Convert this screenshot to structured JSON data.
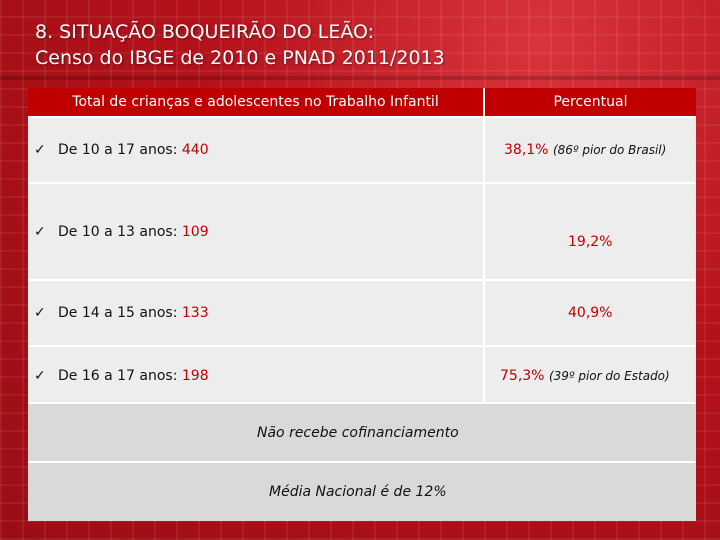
{
  "slide": {
    "title_line1": "8. SITUAÇÃO BOQUEIRÃO DO LEÃO:",
    "title_line2": "Censo do IBGE de 2010 e PNAD 2011/2013"
  },
  "table": {
    "header_left": "Total de crianças e adolescentes no Trabalho Infantil",
    "header_right": "Percentual",
    "rows": [
      {
        "check": "✓",
        "label": "De 10 a 17 anos: ",
        "value": "440",
        "pct": "38,1%",
        "pct_note": "(86º pior do Brasil)"
      },
      {
        "check": "✓",
        "label": "De 10 a 13 anos: ",
        "value": "109",
        "pct": "19,2%",
        "pct_note": ""
      },
      {
        "check": "✓",
        "label": "De 14 a 15 anos: ",
        "value": "133",
        "pct": "40,9%",
        "pct_note": ""
      },
      {
        "check": "✓",
        "label": "De 16 a 17 anos: ",
        "value": "198",
        "pct": "75,3%",
        "pct_note": "(39º pior do Estado)"
      }
    ],
    "note1": "Não recebe cofinanciamento",
    "note2": "Média Nacional é de 12%"
  },
  "colors": {
    "background": "#b5121b",
    "header": "#c00000",
    "highlight": "#c00000",
    "cell": "#ededed",
    "note_cell": "#d9d9d9"
  }
}
